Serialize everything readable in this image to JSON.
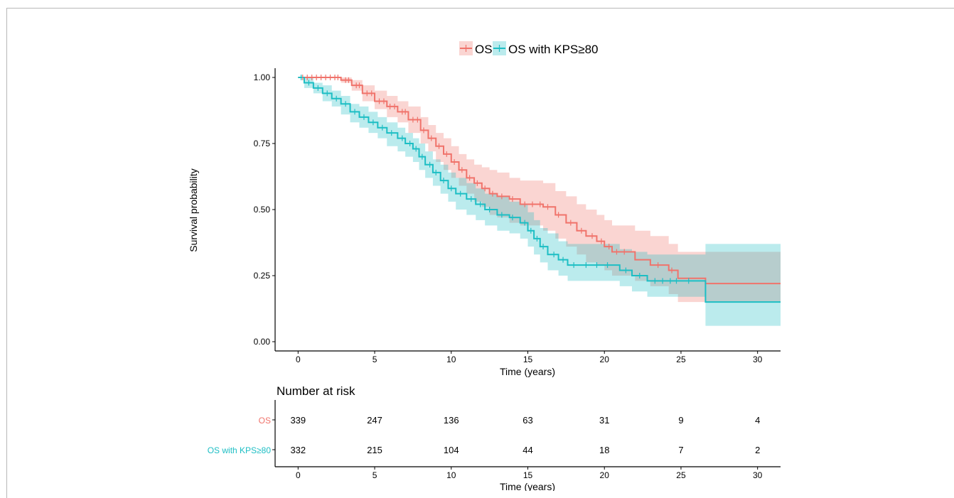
{
  "chart_data": {
    "type": "line",
    "subtype": "kaplan-meier survival curves with 95% confidence bands",
    "legend": {
      "position": "top",
      "entries": [
        "OS",
        "OS with KPS≥80"
      ]
    },
    "xlabel": "Time (years)",
    "ylabel": "Survival probability",
    "xlim": [
      -1.5,
      31.5
    ],
    "ylim": [
      -0.035,
      1.035
    ],
    "xticks": [
      0,
      5,
      10,
      15,
      20,
      25,
      30
    ],
    "yticks": [
      "0.00",
      "0.25",
      "0.50",
      "0.75",
      "1.00"
    ],
    "grid": false,
    "colors": {
      "os": "#f0736b",
      "kps": "#1dbec4"
    },
    "series": [
      {
        "name": "OS",
        "color": "#f0736b",
        "steps": [
          [
            0,
            1.0
          ],
          [
            2.8,
            0.99
          ],
          [
            3.5,
            0.97
          ],
          [
            4.2,
            0.94
          ],
          [
            5,
            0.91
          ],
          [
            5.8,
            0.89
          ],
          [
            6.5,
            0.87
          ],
          [
            7.2,
            0.84
          ],
          [
            8,
            0.8
          ],
          [
            8.5,
            0.77
          ],
          [
            9,
            0.74
          ],
          [
            9.5,
            0.71
          ],
          [
            10,
            0.68
          ],
          [
            10.5,
            0.65
          ],
          [
            11,
            0.62
          ],
          [
            11.5,
            0.6
          ],
          [
            12,
            0.58
          ],
          [
            12.5,
            0.56
          ],
          [
            13,
            0.55
          ],
          [
            13.8,
            0.54
          ],
          [
            14.5,
            0.52
          ],
          [
            16,
            0.51
          ],
          [
            16.8,
            0.48
          ],
          [
            17.5,
            0.45
          ],
          [
            18.2,
            0.42
          ],
          [
            18.8,
            0.4
          ],
          [
            19.5,
            0.38
          ],
          [
            20,
            0.36
          ],
          [
            20.5,
            0.34
          ],
          [
            22,
            0.31
          ],
          [
            23,
            0.29
          ],
          [
            24.2,
            0.27
          ],
          [
            24.8,
            0.24
          ],
          [
            26.6,
            0.22
          ],
          [
            31.5,
            0.22
          ]
        ],
        "upper": [
          [
            0,
            1.0
          ],
          [
            2.8,
            1.0
          ],
          [
            3.5,
            0.99
          ],
          [
            4.2,
            0.97
          ],
          [
            5,
            0.95
          ],
          [
            5.8,
            0.93
          ],
          [
            6.5,
            0.91
          ],
          [
            7.2,
            0.89
          ],
          [
            8,
            0.85
          ],
          [
            8.5,
            0.82
          ],
          [
            9,
            0.79
          ],
          [
            9.5,
            0.77
          ],
          [
            10,
            0.74
          ],
          [
            10.5,
            0.71
          ],
          [
            11,
            0.69
          ],
          [
            11.5,
            0.67
          ],
          [
            12,
            0.66
          ],
          [
            12.5,
            0.65
          ],
          [
            13,
            0.64
          ],
          [
            13.8,
            0.62
          ],
          [
            14.5,
            0.61
          ],
          [
            16,
            0.6
          ],
          [
            16.8,
            0.57
          ],
          [
            17.5,
            0.55
          ],
          [
            18.2,
            0.52
          ],
          [
            18.8,
            0.5
          ],
          [
            19.5,
            0.48
          ],
          [
            20,
            0.46
          ],
          [
            20.5,
            0.44
          ],
          [
            22,
            0.42
          ],
          [
            23,
            0.4
          ],
          [
            24.2,
            0.37
          ],
          [
            24.8,
            0.34
          ],
          [
            26.6,
            0.34
          ],
          [
            31.5,
            0.34
          ]
        ],
        "lower": [
          [
            0,
            1.0
          ],
          [
            2.8,
            0.98
          ],
          [
            3.5,
            0.95
          ],
          [
            4.2,
            0.91
          ],
          [
            5,
            0.88
          ],
          [
            5.8,
            0.85
          ],
          [
            6.5,
            0.83
          ],
          [
            7.2,
            0.79
          ],
          [
            8,
            0.75
          ],
          [
            8.5,
            0.72
          ],
          [
            9,
            0.68
          ],
          [
            9.5,
            0.65
          ],
          [
            10,
            0.62
          ],
          [
            10.5,
            0.59
          ],
          [
            11,
            0.56
          ],
          [
            11.5,
            0.53
          ],
          [
            12,
            0.51
          ],
          [
            12.5,
            0.48
          ],
          [
            13,
            0.47
          ],
          [
            13.8,
            0.45
          ],
          [
            14.5,
            0.44
          ],
          [
            16,
            0.42
          ],
          [
            16.8,
            0.39
          ],
          [
            17.5,
            0.36
          ],
          [
            18.2,
            0.33
          ],
          [
            18.8,
            0.3
          ],
          [
            19.5,
            0.29
          ],
          [
            20,
            0.27
          ],
          [
            20.5,
            0.25
          ],
          [
            22,
            0.23
          ],
          [
            23,
            0.21
          ],
          [
            24.2,
            0.18
          ],
          [
            24.8,
            0.15
          ],
          [
            26.6,
            0.15
          ],
          [
            31.5,
            0.15
          ]
        ],
        "censor_times": [
          0.3,
          0.6,
          0.9,
          1.2,
          1.5,
          1.8,
          2.1,
          2.4,
          2.6,
          3.1,
          3.3,
          3.8,
          4.0,
          4.5,
          4.8,
          5.3,
          5.6,
          6.0,
          6.3,
          6.8,
          7.0,
          7.5,
          7.8,
          8.2,
          8.7,
          9.2,
          9.7,
          10.2,
          10.7,
          11.2,
          11.7,
          12.2,
          12.7,
          13.3,
          14.0,
          14.8,
          15.3,
          15.8,
          16.3,
          17.0,
          17.8,
          18.5,
          19.2,
          19.8,
          20.3,
          20.8,
          21.3,
          23.5,
          24.4
        ]
      },
      {
        "name": "OS with KPS≥80",
        "color": "#1dbec4",
        "steps": [
          [
            0,
            1.0
          ],
          [
            0.4,
            0.98
          ],
          [
            1,
            0.96
          ],
          [
            1.6,
            0.94
          ],
          [
            2.2,
            0.92
          ],
          [
            2.8,
            0.9
          ],
          [
            3.4,
            0.87
          ],
          [
            4,
            0.85
          ],
          [
            4.6,
            0.83
          ],
          [
            5.2,
            0.81
          ],
          [
            5.8,
            0.79
          ],
          [
            6.5,
            0.77
          ],
          [
            7,
            0.75
          ],
          [
            7.5,
            0.73
          ],
          [
            7.9,
            0.7
          ],
          [
            8.3,
            0.67
          ],
          [
            8.8,
            0.64
          ],
          [
            9.3,
            0.61
          ],
          [
            9.8,
            0.58
          ],
          [
            10.3,
            0.56
          ],
          [
            11,
            0.54
          ],
          [
            11.6,
            0.52
          ],
          [
            12.2,
            0.5
          ],
          [
            13,
            0.48
          ],
          [
            13.8,
            0.47
          ],
          [
            14.5,
            0.45
          ],
          [
            15,
            0.42
          ],
          [
            15.4,
            0.39
          ],
          [
            15.8,
            0.36
          ],
          [
            16.3,
            0.33
          ],
          [
            17,
            0.31
          ],
          [
            17.6,
            0.29
          ],
          [
            21,
            0.27
          ],
          [
            21.8,
            0.25
          ],
          [
            22.8,
            0.23
          ],
          [
            26.6,
            0.15
          ],
          [
            31.5,
            0.15
          ]
        ],
        "upper": [
          [
            0,
            1.0
          ],
          [
            0.4,
            1.0
          ],
          [
            1,
            0.98
          ],
          [
            1.6,
            0.97
          ],
          [
            2.2,
            0.95
          ],
          [
            2.8,
            0.93
          ],
          [
            3.4,
            0.9
          ],
          [
            4,
            0.89
          ],
          [
            4.6,
            0.87
          ],
          [
            5.2,
            0.85
          ],
          [
            5.8,
            0.83
          ],
          [
            6.5,
            0.81
          ],
          [
            7,
            0.79
          ],
          [
            7.5,
            0.77
          ],
          [
            7.9,
            0.75
          ],
          [
            8.3,
            0.72
          ],
          [
            8.8,
            0.69
          ],
          [
            9.3,
            0.67
          ],
          [
            9.8,
            0.64
          ],
          [
            10.3,
            0.62
          ],
          [
            11,
            0.6
          ],
          [
            11.6,
            0.58
          ],
          [
            12.2,
            0.56
          ],
          [
            13,
            0.55
          ],
          [
            13.8,
            0.53
          ],
          [
            14.5,
            0.52
          ],
          [
            15,
            0.49
          ],
          [
            15.4,
            0.46
          ],
          [
            15.8,
            0.43
          ],
          [
            16.3,
            0.41
          ],
          [
            17,
            0.38
          ],
          [
            17.6,
            0.37
          ],
          [
            21,
            0.35
          ],
          [
            21.8,
            0.34
          ],
          [
            22.8,
            0.33
          ],
          [
            26.6,
            0.37
          ],
          [
            31.5,
            0.37
          ]
        ],
        "lower": [
          [
            0,
            1.0
          ],
          [
            0.4,
            0.96
          ],
          [
            1,
            0.94
          ],
          [
            1.6,
            0.91
          ],
          [
            2.2,
            0.89
          ],
          [
            2.8,
            0.86
          ],
          [
            3.4,
            0.83
          ],
          [
            4,
            0.81
          ],
          [
            4.6,
            0.79
          ],
          [
            5.2,
            0.77
          ],
          [
            5.8,
            0.74
          ],
          [
            6.5,
            0.72
          ],
          [
            7,
            0.7
          ],
          [
            7.5,
            0.68
          ],
          [
            7.9,
            0.65
          ],
          [
            8.3,
            0.62
          ],
          [
            8.8,
            0.59
          ],
          [
            9.3,
            0.56
          ],
          [
            9.8,
            0.53
          ],
          [
            10.3,
            0.5
          ],
          [
            11,
            0.48
          ],
          [
            11.6,
            0.46
          ],
          [
            12.2,
            0.44
          ],
          [
            13,
            0.42
          ],
          [
            13.8,
            0.41
          ],
          [
            14.5,
            0.39
          ],
          [
            15,
            0.36
          ],
          [
            15.4,
            0.33
          ],
          [
            15.8,
            0.3
          ],
          [
            16.3,
            0.27
          ],
          [
            17,
            0.25
          ],
          [
            17.6,
            0.23
          ],
          [
            21,
            0.21
          ],
          [
            21.8,
            0.19
          ],
          [
            22.8,
            0.17
          ],
          [
            26.6,
            0.06
          ],
          [
            31.5,
            0.06
          ]
        ],
        "censor_times": [
          0.2,
          0.7,
          1.3,
          1.9,
          2.5,
          3.1,
          3.7,
          4.3,
          4.9,
          5.5,
          6.1,
          6.8,
          7.3,
          7.7,
          8.1,
          8.6,
          9.0,
          9.5,
          10.0,
          10.6,
          11.3,
          11.9,
          12.5,
          13.3,
          14.0,
          14.8,
          15.2,
          15.6,
          16.0,
          16.7,
          17.3,
          18.0,
          18.8,
          19.5,
          20.2,
          21.4,
          22.3,
          23.3,
          23.8,
          24.3,
          24.7,
          25.5
        ]
      }
    ],
    "risk_table": {
      "title": "Number at risk",
      "xlabel": "Time (years)",
      "xticks": [
        0,
        5,
        10,
        15,
        20,
        25,
        30
      ],
      "rows": [
        {
          "label": "OS",
          "color": "#f0736b",
          "values": [
            339,
            247,
            136,
            63,
            31,
            9,
            4
          ]
        },
        {
          "label": "OS with KPS≥80",
          "color": "#1dbec4",
          "values": [
            332,
            215,
            104,
            44,
            18,
            7,
            2
          ]
        }
      ]
    }
  }
}
